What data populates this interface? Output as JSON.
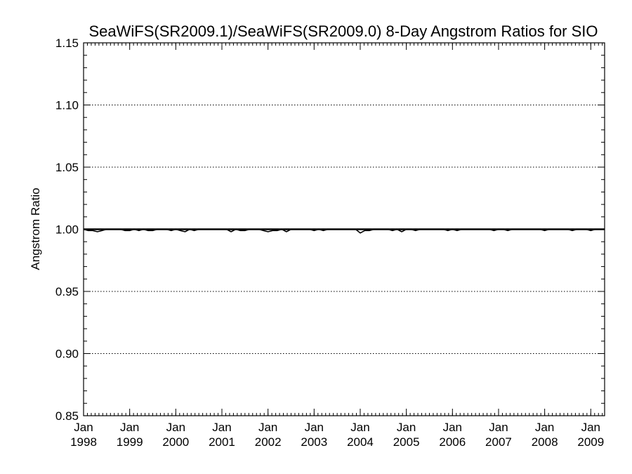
{
  "chart_data": {
    "type": "line",
    "title": "SeaWiFS(SR2009.1)/SeaWiFS(SR2009.0) 8-Day Angstrom Ratios for SIO",
    "xlabel": "",
    "ylabel": "Angstrom Ratio",
    "ylim": [
      0.85,
      1.15
    ],
    "xlim": [
      1998.0,
      2009.3
    ],
    "yticks": [
      0.85,
      0.9,
      0.95,
      1.0,
      1.05,
      1.1,
      1.15
    ],
    "ytick_labels": [
      "0.85",
      "0.90",
      "0.95",
      "1.00",
      "1.05",
      "1.10",
      "1.15"
    ],
    "xticks": [
      {
        "x": 1998,
        "month": "Jan",
        "year": "1998"
      },
      {
        "x": 1999,
        "month": "Jan",
        "year": "1999"
      },
      {
        "x": 2000,
        "month": "Jan",
        "year": "2000"
      },
      {
        "x": 2001,
        "month": "Jan",
        "year": "2001"
      },
      {
        "x": 2002,
        "month": "Jan",
        "year": "2002"
      },
      {
        "x": 2003,
        "month": "Jan",
        "year": "2003"
      },
      {
        "x": 2004,
        "month": "Jan",
        "year": "2004"
      },
      {
        "x": 2005,
        "month": "Jan",
        "year": "2005"
      },
      {
        "x": 2006,
        "month": "Jan",
        "year": "2006"
      },
      {
        "x": 2007,
        "month": "Jan",
        "year": "2007"
      },
      {
        "x": 2008,
        "month": "Jan",
        "year": "2008"
      },
      {
        "x": 2009,
        "month": "Jan",
        "year": "2009"
      }
    ],
    "grid": "horizontal dotted at major y ticks",
    "reference_line": 1.0,
    "series": [
      {
        "x": [
          1998.0,
          1998.1,
          1998.2,
          1998.3,
          1998.4,
          1998.5,
          1998.6,
          1998.7,
          1998.8,
          1998.9,
          1999.0,
          1999.1,
          1999.2,
          1999.3,
          1999.4,
          1999.5,
          1999.6,
          1999.7,
          1999.8,
          1999.9,
          2000.0,
          2000.1,
          2000.2,
          2000.3,
          2000.4,
          2000.5,
          2000.6,
          2000.7,
          2000.8,
          2000.9,
          2001.0,
          2001.1,
          2001.2,
          2001.3,
          2001.4,
          2001.5,
          2001.6,
          2001.7,
          2001.8,
          2001.9,
          2002.0,
          2002.1,
          2002.2,
          2002.3,
          2002.4,
          2002.5,
          2002.6,
          2002.7,
          2002.8,
          2002.9,
          2003.0,
          2003.1,
          2003.2,
          2003.3,
          2003.4,
          2003.5,
          2003.6,
          2003.7,
          2003.8,
          2003.9,
          2004.0,
          2004.1,
          2004.2,
          2004.3,
          2004.4,
          2004.5,
          2004.6,
          2004.7,
          2004.8,
          2004.9,
          2005.0,
          2005.1,
          2005.2,
          2005.3,
          2005.4,
          2005.5,
          2005.6,
          2005.7,
          2005.8,
          2005.9,
          2006.0,
          2006.1,
          2006.2,
          2006.3,
          2006.4,
          2006.5,
          2006.6,
          2006.7,
          2006.8,
          2006.9,
          2007.0,
          2007.1,
          2007.2,
          2007.3,
          2007.4,
          2007.5,
          2007.6,
          2007.7,
          2007.8,
          2007.9,
          2008.0,
          2008.1,
          2008.2,
          2008.3,
          2008.4,
          2008.5,
          2008.6,
          2008.7,
          2008.8,
          2008.9,
          2009.0,
          2009.1,
          2009.2,
          2009.3
        ],
        "y": [
          1.0,
          0.999,
          0.999,
          0.998,
          0.999,
          1.0,
          1.0,
          1.0,
          1.0,
          0.999,
          0.999,
          1.0,
          0.999,
          1.0,
          0.999,
          0.999,
          1.0,
          1.0,
          1.0,
          0.999,
          1.0,
          0.999,
          0.998,
          1.0,
          0.999,
          1.0,
          1.0,
          1.0,
          1.0,
          1.0,
          1.0,
          1.0,
          0.998,
          1.0,
          0.999,
          0.999,
          1.0,
          1.0,
          1.0,
          0.999,
          0.998,
          0.999,
          0.999,
          1.0,
          0.998,
          1.0,
          1.0,
          1.0,
          1.0,
          1.0,
          0.999,
          1.0,
          0.999,
          1.0,
          1.0,
          1.0,
          1.0,
          1.0,
          1.0,
          1.0,
          0.997,
          0.999,
          0.999,
          1.0,
          1.0,
          1.0,
          1.0,
          0.999,
          1.0,
          0.998,
          1.0,
          1.0,
          0.999,
          1.0,
          1.0,
          1.0,
          1.0,
          1.0,
          1.0,
          0.999,
          1.0,
          0.999,
          1.0,
          1.0,
          1.0,
          1.0,
          1.0,
          1.0,
          1.0,
          0.999,
          1.0,
          1.0,
          0.999,
          1.0,
          1.0,
          1.0,
          1.0,
          1.0,
          1.0,
          1.0,
          0.999,
          1.0,
          1.0,
          1.0,
          1.0,
          1.0,
          0.999,
          1.0,
          1.0,
          1.0,
          0.999,
          1.0,
          1.0,
          1.0
        ]
      }
    ]
  },
  "colors": {
    "line": "#000000",
    "grid": "#000000",
    "background": "#ffffff"
  }
}
